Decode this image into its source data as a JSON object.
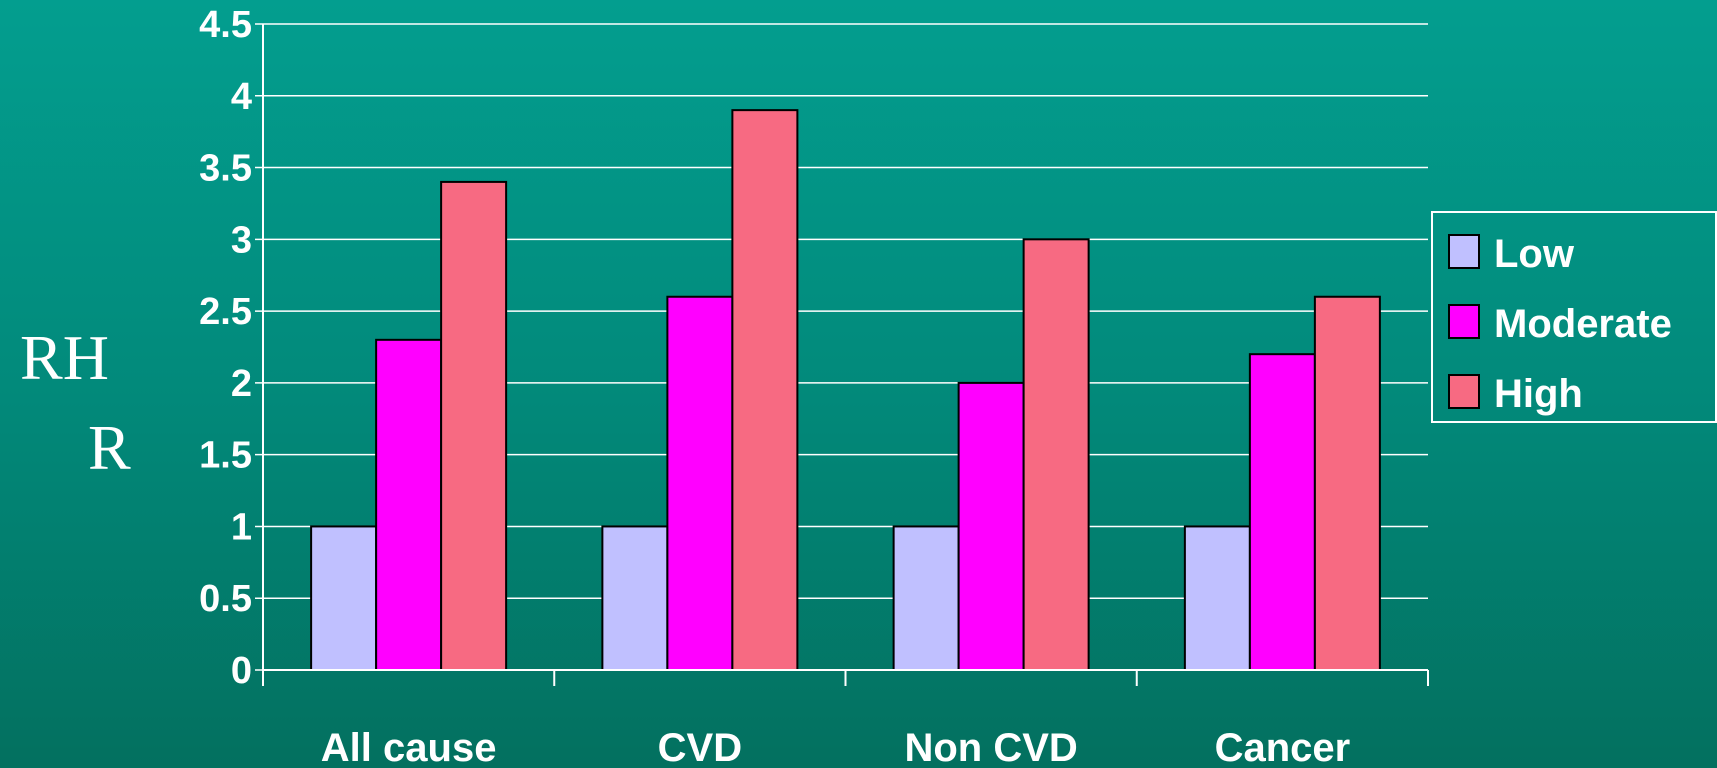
{
  "chart_data": {
    "type": "bar",
    "ylabel_lines": [
      "RH",
      "R"
    ],
    "categories": [
      "All cause",
      "CVD",
      "Non CVD",
      "Cancer"
    ],
    "series": [
      {
        "name": "Low",
        "color": "#c0c0ff",
        "values": [
          1,
          1,
          1,
          1
        ]
      },
      {
        "name": "Moderate",
        "color": "#ff00ff",
        "values": [
          2.3,
          2.6,
          2.0,
          2.2
        ]
      },
      {
        "name": "High",
        "color": "#f76a82",
        "values": [
          3.4,
          3.9,
          3.0,
          2.6
        ]
      }
    ],
    "ylim": [
      0,
      4.5
    ],
    "yticks": [
      "0",
      "0.5",
      "1",
      "1.5",
      "2",
      "2.5",
      "3",
      "3.5",
      "4",
      "4.5"
    ],
    "grid": true,
    "legend_position": "right"
  }
}
